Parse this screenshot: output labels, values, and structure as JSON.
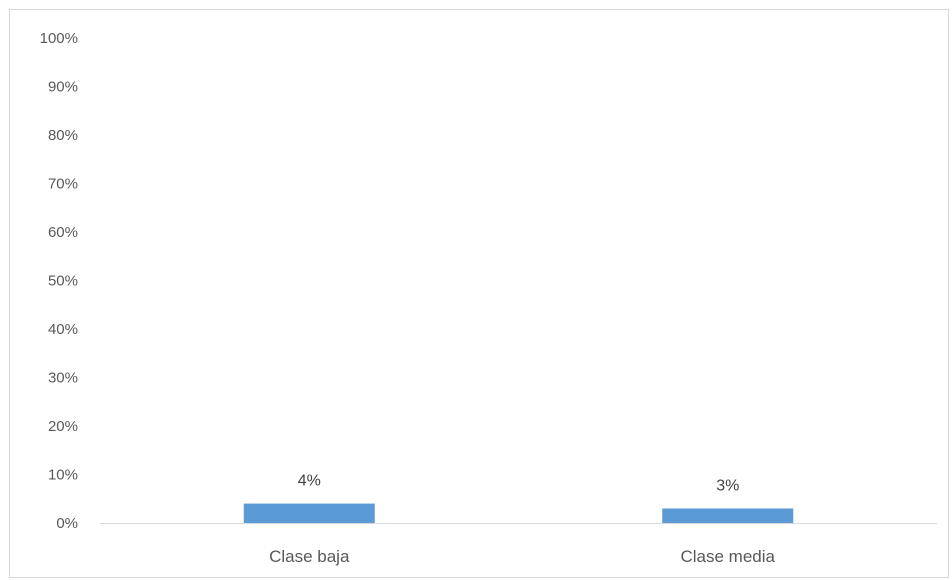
{
  "chart_data": {
    "type": "bar",
    "categories": [
      "Clase baja",
      "Clase media"
    ],
    "values": [
      4,
      3
    ],
    "data_labels": [
      "4%",
      "3%"
    ],
    "title": "",
    "xlabel": "",
    "ylabel": "",
    "ylim": [
      0,
      100
    ],
    "y_ticks": [
      0,
      10,
      20,
      30,
      40,
      50,
      60,
      70,
      80,
      90,
      100
    ],
    "y_tick_labels": [
      "0%",
      "10%",
      "20%",
      "30%",
      "40%",
      "50%",
      "60%",
      "70%",
      "80%",
      "90%",
      "100%"
    ],
    "grid": false,
    "legend": "none",
    "bar_color": "#5b9bd5",
    "axis_color": "#d9d9d9"
  }
}
